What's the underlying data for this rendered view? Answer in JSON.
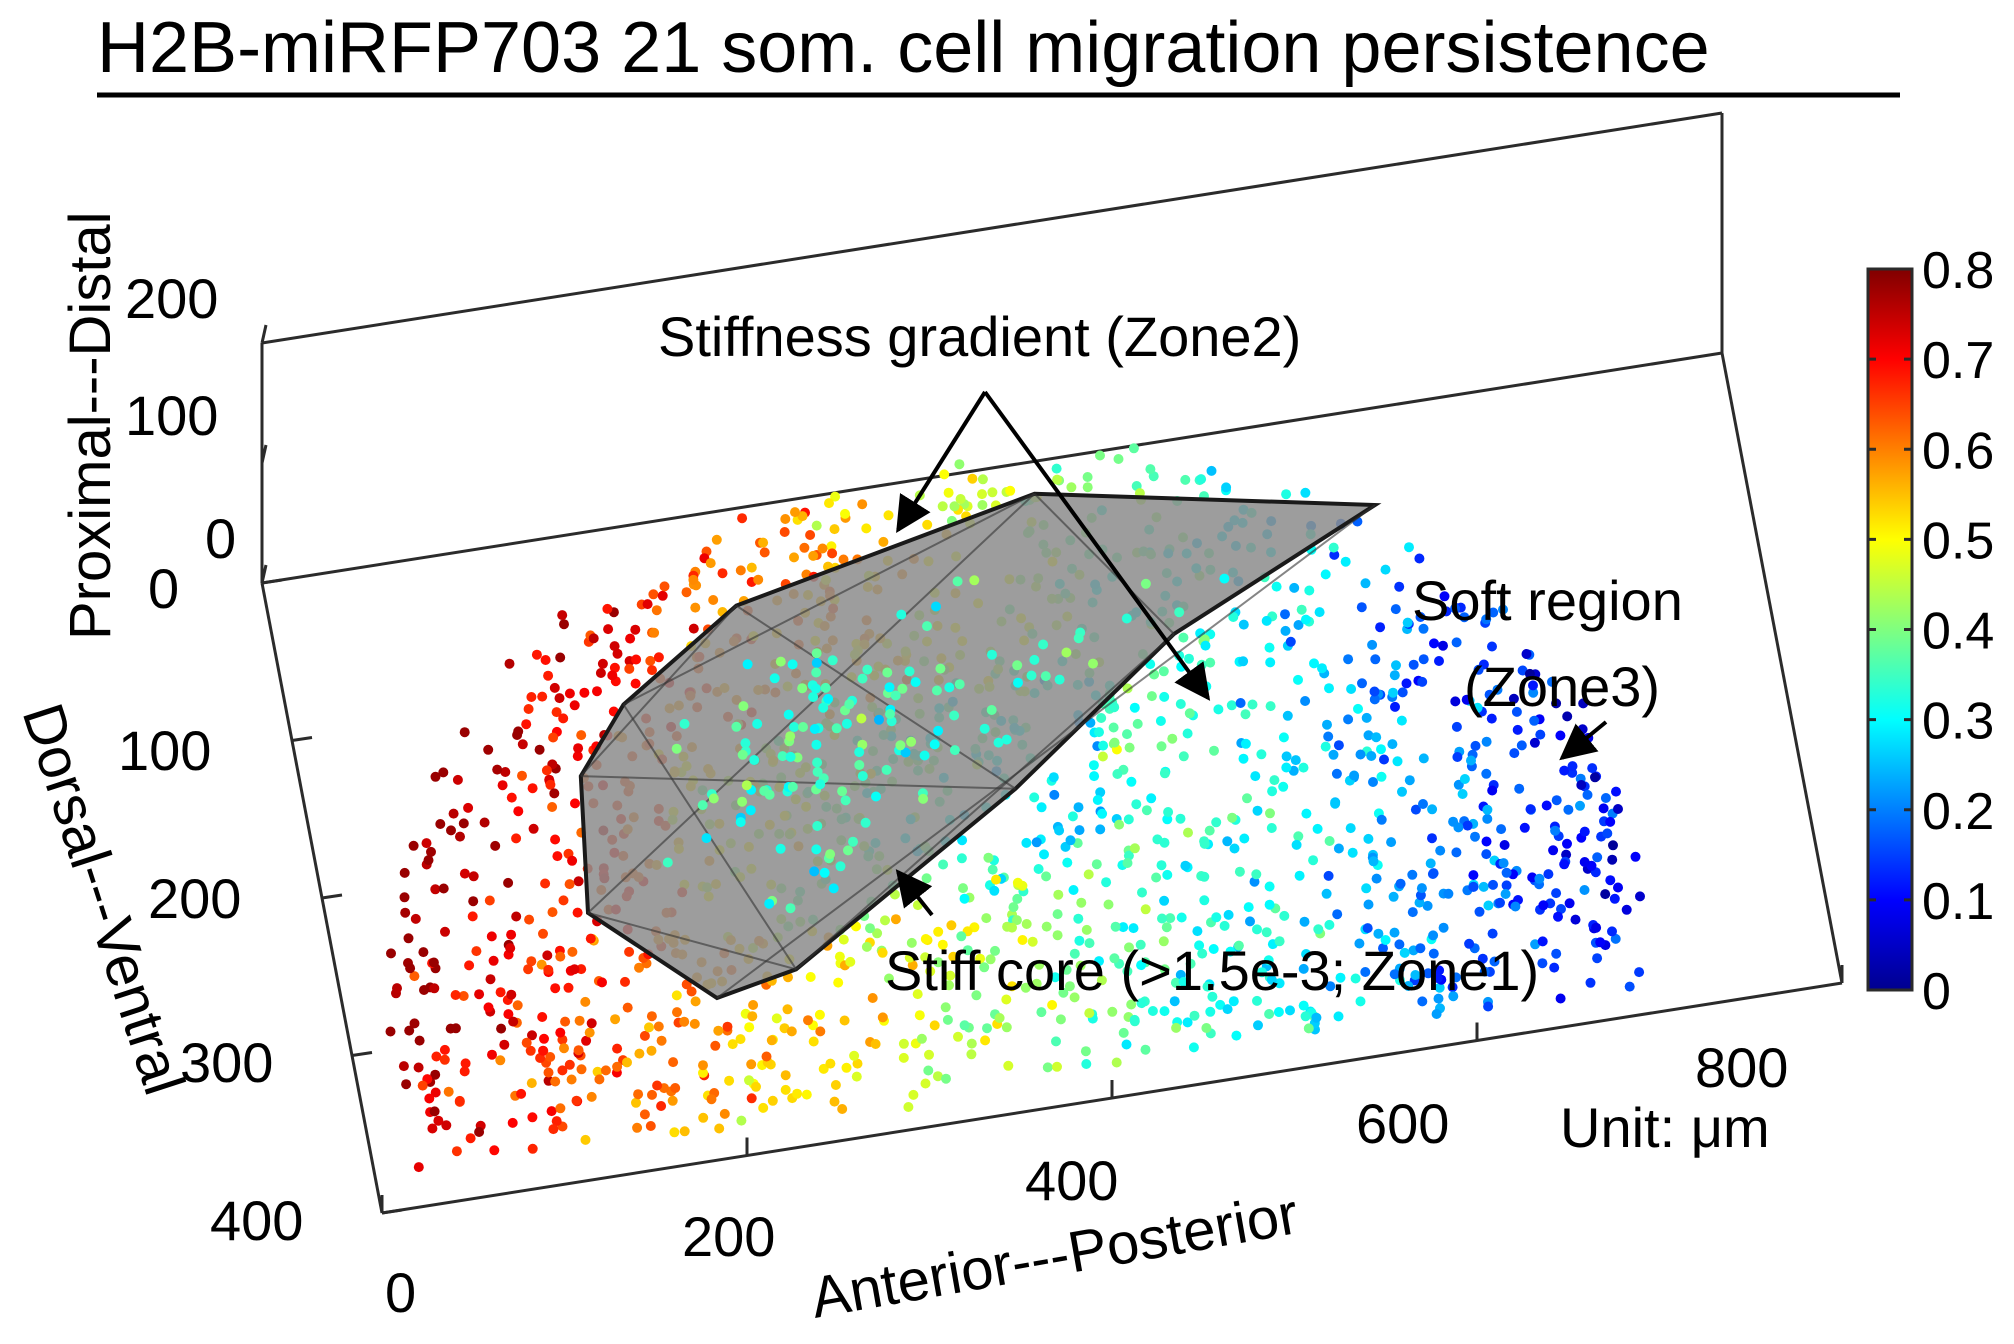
{
  "chart_data": {
    "type": "scatter",
    "title": "H2B-miRFP703 21 som. cell migration persistence",
    "axes": {
      "x": {
        "label": "Anterior---Posterior",
        "lim": [
          0,
          800
        ],
        "ticks": [
          "0",
          "200",
          "400",
          "600",
          "800"
        ]
      },
      "y": {
        "label": "Dorsal---Ventral",
        "lim": [
          0,
          400
        ],
        "ticks": [
          "0",
          "100",
          "200",
          "300",
          "400"
        ]
      },
      "z": {
        "label": "Proximal---Distal",
        "lim": [
          0,
          200
        ],
        "ticks": [
          "0",
          "100",
          "200"
        ]
      }
    },
    "unit_note": "Unit: μm",
    "colorbar": {
      "colormap": "jet",
      "lim": [
        0,
        0.8
      ],
      "ticks": [
        "0",
        "0.1",
        "0.2",
        "0.3",
        "0.4",
        "0.5",
        "0.6",
        "0.7",
        "0.8"
      ]
    },
    "annotations": [
      {
        "id": "zone2",
        "text": "Stiffness gradient (Zone2)"
      },
      {
        "id": "zone3a",
        "text": "Soft region"
      },
      {
        "id": "zone3b",
        "text": "(Zone3)"
      },
      {
        "id": "zone1",
        "text": "Stiff core (>1.5e-3; Zone1)"
      }
    ],
    "point_cloud": {
      "count": 1700,
      "x_range": [
        20,
        700
      ],
      "y_range": [
        20,
        390
      ],
      "note": "Dome-shaped cloud of cell positions colored by persistence; high values (orange/red) toward anterior-dorsal edge, low values (blue) toward posterior side."
    },
    "stiff_core_hull": {
      "color": "#808080",
      "vertices_xy": [
        [
          150,
          150
        ],
        [
          140,
          235
        ],
        [
          200,
          300
        ],
        [
          245,
          290
        ],
        [
          380,
          200
        ],
        [
          480,
          120
        ],
        [
          600,
          60
        ],
        [
          420,
          20
        ],
        [
          250,
          60
        ],
        [
          180,
          110
        ]
      ]
    },
    "colors": {
      "hull_fill": "#8c8c8c",
      "axis": "#2b2b2b"
    }
  }
}
